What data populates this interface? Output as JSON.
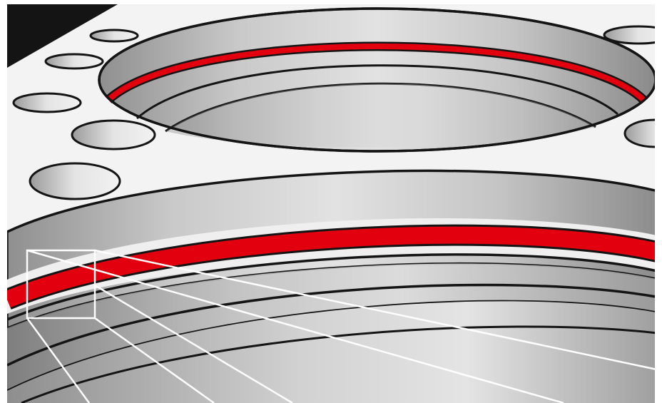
{
  "colors": {
    "background": "#ffffff",
    "surface": "#f3f3f3",
    "outline": "#141414",
    "seal": "#e2000f",
    "seal_dark": "#b4000c",
    "metal_light": "#e6e6e6",
    "metal_mid": "#bdbdbd",
    "metal_dark": "#8c8c8c",
    "callout": "#ffffff"
  },
  "components": {
    "flange_surface": "flange-face",
    "bolt_holes": "bolt-hole-icons",
    "upper_bore": "upper-bore-with-seal-groove",
    "lower_bore": "large-bore-with-seal-groove",
    "seal_rings": "red-o-ring-seals",
    "detail_callout": "magnified-detail-frame"
  }
}
